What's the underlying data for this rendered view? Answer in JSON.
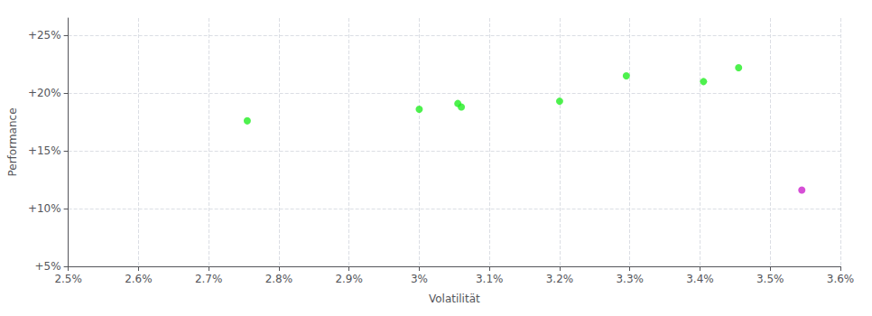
{
  "chart_data": {
    "type": "scatter",
    "xlabel": "Volatilität",
    "ylabel": "Performance",
    "xlim": [
      0.025,
      0.036
    ],
    "ylim": [
      0.05,
      0.265
    ],
    "xticks": [
      {
        "value": 0.025,
        "label": "2.5%"
      },
      {
        "value": 0.026,
        "label": "2.6%"
      },
      {
        "value": 0.027,
        "label": "2.7%"
      },
      {
        "value": 0.028,
        "label": "2.8%"
      },
      {
        "value": 0.029,
        "label": "2.9%"
      },
      {
        "value": 0.03,
        "label": "3%"
      },
      {
        "value": 0.031,
        "label": "3.1%"
      },
      {
        "value": 0.032,
        "label": "3.2%"
      },
      {
        "value": 0.033,
        "label": "3.3%"
      },
      {
        "value": 0.034,
        "label": "3.4%"
      },
      {
        "value": 0.035,
        "label": "3.5%"
      },
      {
        "value": 0.036,
        "label": "3.6%"
      }
    ],
    "yticks": [
      {
        "value": 0.05,
        "label": "+5%"
      },
      {
        "value": 0.1,
        "label": "+10%"
      },
      {
        "value": 0.15,
        "label": "+15%"
      },
      {
        "value": 0.2,
        "label": "+20%"
      },
      {
        "value": 0.25,
        "label": "+25%"
      }
    ],
    "grid": true,
    "series": [
      {
        "color": "#22ee22",
        "values": [
          [
            0.02755,
            0.176
          ],
          [
            0.03,
            0.186
          ],
          [
            0.03055,
            0.191
          ],
          [
            0.0306,
            0.188
          ],
          [
            0.032,
            0.193
          ],
          [
            0.03295,
            0.215
          ],
          [
            0.03405,
            0.21
          ],
          [
            0.03455,
            0.222
          ]
        ]
      },
      {
        "color": "#cc22cc",
        "values": [
          [
            0.03545,
            0.116
          ]
        ]
      }
    ]
  }
}
